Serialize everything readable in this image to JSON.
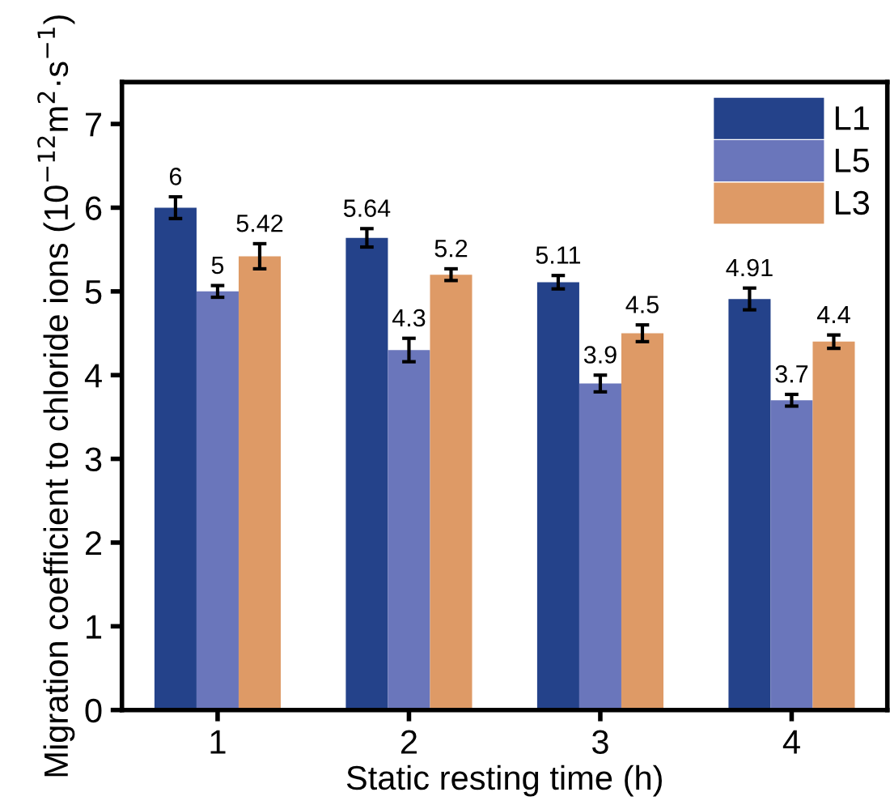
{
  "chart_data": {
    "type": "bar",
    "xlabel": "Static resting time (h)",
    "ylabel": "Migration coefficient to chloride ions (10$^{−12}$m$^{2}$·s$^{−1}$)",
    "categories": [
      "1",
      "2",
      "3",
      "4"
    ],
    "series": [
      {
        "name": "L1",
        "color": "#24428a",
        "values": [
          6,
          5.64,
          5.11,
          4.91
        ],
        "errors": [
          0.13,
          0.11,
          0.08,
          0.13
        ]
      },
      {
        "name": "L5",
        "color": "#6a76bb",
        "values": [
          5,
          4.3,
          3.9,
          3.7
        ],
        "errors": [
          0.07,
          0.14,
          0.1,
          0.07
        ]
      },
      {
        "name": "L3",
        "color": "#de9a66",
        "values": [
          5.42,
          5.2,
          4.5,
          4.4
        ],
        "errors": [
          0.15,
          0.07,
          0.1,
          0.08
        ]
      }
    ],
    "ylim": [
      0,
      7.5
    ],
    "yticks": [
      0,
      1,
      2,
      3,
      4,
      5,
      6,
      7
    ],
    "data_labels": true,
    "legend": "top right",
    "grid": false
  }
}
